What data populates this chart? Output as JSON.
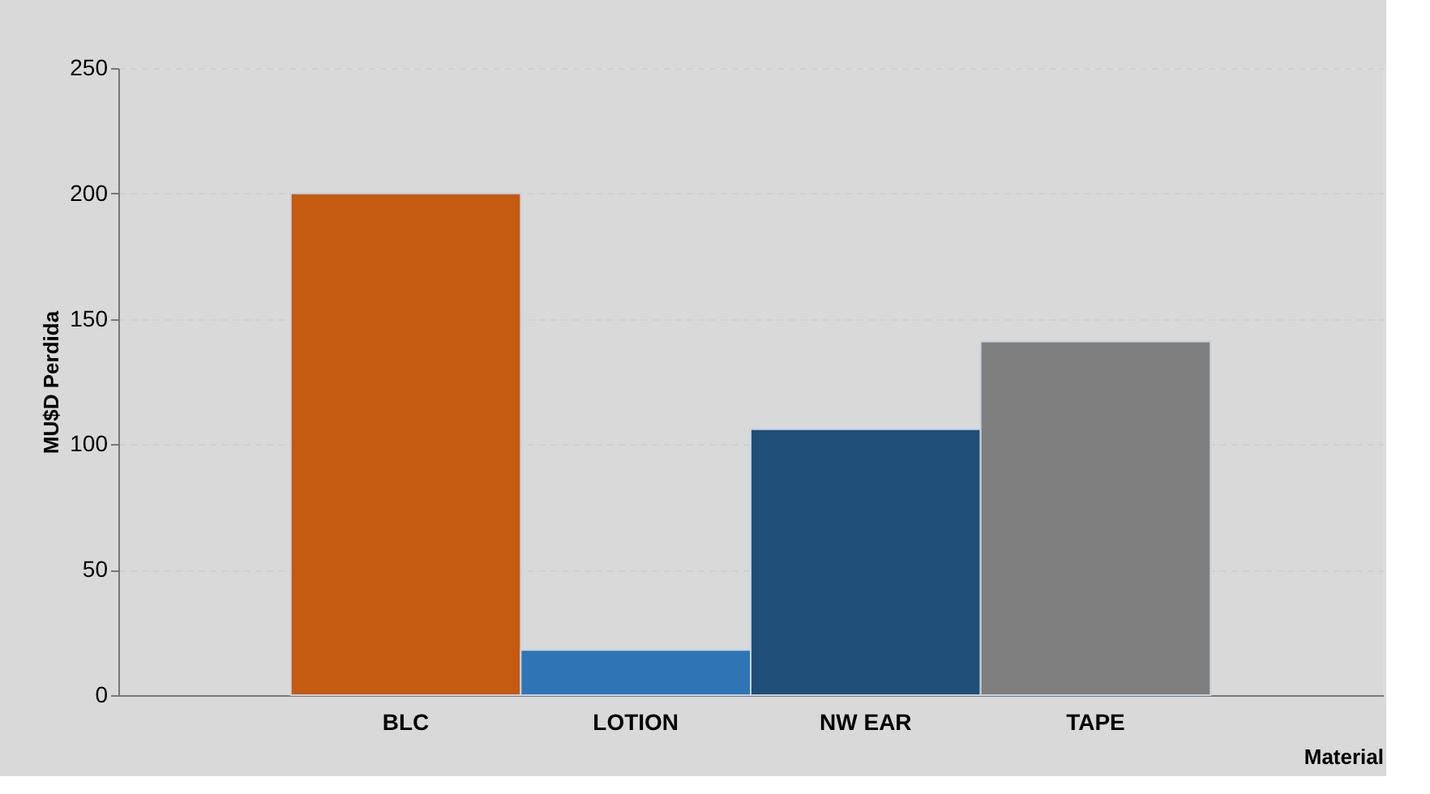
{
  "chart_data": {
    "type": "bar",
    "xlabel": "Material",
    "ylabel": "MU$D Perdida",
    "categories": [
      "BLC",
      "LOTION",
      "NW EAR",
      "TAPE"
    ],
    "values": [
      200,
      18,
      106,
      141
    ],
    "colors": [
      "#c55a11",
      "#2e75b6",
      "#1f4e79",
      "#7f7f7f"
    ],
    "ylim": [
      0,
      250
    ],
    "yticks": [
      0,
      50,
      100,
      150,
      200,
      250
    ],
    "grid": "y",
    "legend": false
  }
}
